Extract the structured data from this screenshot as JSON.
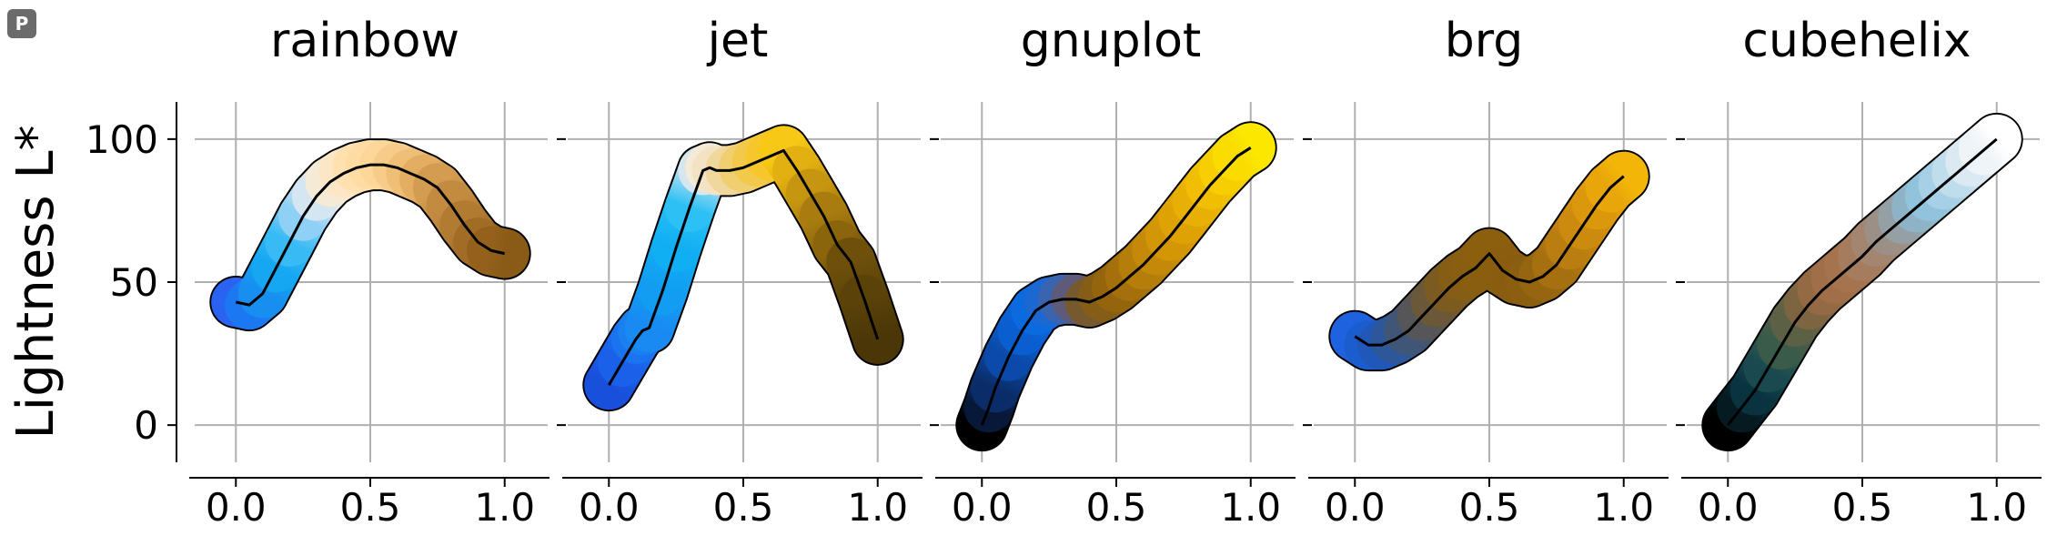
{
  "badge": {
    "label": "P"
  },
  "colors": {
    "grid": "#b0b0b0",
    "axis": "#000000",
    "centerline": "#000000"
  },
  "chart_data": [
    {
      "type": "line",
      "title": "rainbow",
      "ylabel": "Lightness L*",
      "xlim": [
        -0.16,
        1.16
      ],
      "ylim": [
        -13,
        113
      ],
      "xticks": [
        "0.0",
        "0.5",
        "1.0"
      ],
      "yticks": [
        "0",
        "50",
        "100"
      ],
      "grid": true,
      "x": [
        0.0,
        0.05,
        0.1,
        0.15,
        0.2,
        0.25,
        0.3,
        0.35,
        0.4,
        0.45,
        0.5,
        0.55,
        0.6,
        0.65,
        0.7,
        0.75,
        0.8,
        0.85,
        0.9,
        0.95,
        1.0
      ],
      "y": [
        43,
        42,
        46,
        55,
        64,
        73,
        80,
        85,
        88,
        90,
        91,
        91,
        90,
        88,
        86,
        83,
        77,
        70,
        64,
        61,
        60
      ],
      "colors": [
        "#2a62f2",
        "#1c78f0",
        "#168ff0",
        "#15a7f2",
        "#38baf5",
        "#8fd0f6",
        "#d4e6f2",
        "#f5ead6",
        "#fde6c6",
        "#ffe1b0",
        "#ffdca3",
        "#fdd69a",
        "#f7cc8a",
        "#efbe77",
        "#e3ae62",
        "#d39c50",
        "#c28b40",
        "#b17b32",
        "#a16c26",
        "#93611c",
        "#8a5a17"
      ]
    },
    {
      "type": "line",
      "title": "jet",
      "ylabel": "",
      "xlim": [
        -0.16,
        1.16
      ],
      "ylim": [
        -13,
        113
      ],
      "xticks": [
        "0.0",
        "0.5",
        "1.0"
      ],
      "yticks": [
        "0",
        "50",
        "100"
      ],
      "grid": true,
      "x": [
        0.0,
        0.05,
        0.1,
        0.125,
        0.15,
        0.2,
        0.25,
        0.3,
        0.35,
        0.375,
        0.4,
        0.45,
        0.5,
        0.55,
        0.6,
        0.65,
        0.7,
        0.75,
        0.8,
        0.85,
        0.9,
        0.95,
        1.0
      ],
      "y": [
        14,
        22,
        30,
        33,
        34,
        47,
        62,
        76,
        89,
        90,
        89,
        89,
        90,
        92,
        94,
        96,
        89,
        81,
        73,
        63,
        57,
        44,
        30
      ],
      "colors": [
        "#1850dc",
        "#1a60e8",
        "#1a73ef",
        "#1a80f0",
        "#188af1",
        "#129cf2",
        "#10aff3",
        "#2cc0f5",
        "#d6e6ee",
        "#f4ead8",
        "#f4e3c2",
        "#f0d79e",
        "#f0cf70",
        "#f2c94a",
        "#f5c72a",
        "#f7c815",
        "#e2b010",
        "#c79610",
        "#a87c0e",
        "#8a650c",
        "#6e500a",
        "#5a4208",
        "#4a3607"
      ]
    },
    {
      "type": "line",
      "title": "gnuplot",
      "ylabel": "",
      "xlim": [
        -0.16,
        1.16
      ],
      "ylim": [
        -13,
        113
      ],
      "xticks": [
        "0.0",
        "0.5",
        "1.0"
      ],
      "yticks": [
        "0",
        "50",
        "100"
      ],
      "grid": true,
      "x": [
        0.0,
        0.025,
        0.05,
        0.1,
        0.15,
        0.2,
        0.25,
        0.3,
        0.35,
        0.4,
        0.45,
        0.5,
        0.55,
        0.6,
        0.65,
        0.7,
        0.75,
        0.8,
        0.85,
        0.9,
        0.95,
        1.0
      ],
      "y": [
        0,
        6,
        13,
        24,
        33,
        40,
        43,
        44,
        44,
        43,
        45,
        48,
        52,
        56,
        61,
        66,
        72,
        78,
        84,
        89,
        94,
        97
      ],
      "colors": [
        "#000000",
        "#081838",
        "#0a2d6a",
        "#0b4aa8",
        "#0b5ed0",
        "#0c6adf",
        "#1c68d2",
        "#3a63b0",
        "#5e5a7a",
        "#77592f",
        "#865d16",
        "#94650d",
        "#a5700b",
        "#b57d0a",
        "#c48908",
        "#d39607",
        "#dfa205",
        "#e8b004",
        "#f0be03",
        "#f6ce02",
        "#fadc01",
        "#fbe700"
      ]
    },
    {
      "type": "line",
      "title": "brg",
      "ylabel": "",
      "xlim": [
        -0.16,
        1.16
      ],
      "ylim": [
        -13,
        113
      ],
      "xticks": [
        "0.0",
        "0.5",
        "1.0"
      ],
      "yticks": [
        "0",
        "50",
        "100"
      ],
      "grid": true,
      "x": [
        0.0,
        0.05,
        0.1,
        0.15,
        0.2,
        0.25,
        0.3,
        0.35,
        0.4,
        0.45,
        0.5,
        0.55,
        0.6,
        0.65,
        0.7,
        0.75,
        0.8,
        0.85,
        0.9,
        0.95,
        1.0
      ],
      "y": [
        31,
        28,
        28,
        30,
        33,
        38,
        43,
        48,
        52,
        55,
        60,
        54,
        51,
        50,
        52,
        56,
        63,
        70,
        77,
        83,
        87
      ],
      "colors": [
        "#1f62e0",
        "#1b5ccf",
        "#1f58b8",
        "#2d5798",
        "#3f5676",
        "#565658",
        "#6b5838",
        "#7b5b20",
        "#855d14",
        "#8a5e10",
        "#8c5f0e",
        "#8a5d0f",
        "#895c10",
        "#8b5e10",
        "#956510",
        "#a66f10",
        "#ba7d10",
        "#cc8b0e",
        "#dc980c",
        "#e9a60a",
        "#f3b608"
      ]
    },
    {
      "type": "line",
      "title": "cubehelix",
      "ylabel": "",
      "xlim": [
        -0.16,
        1.16
      ],
      "ylim": [
        -13,
        113
      ],
      "xticks": [
        "0.0",
        "0.5",
        "1.0"
      ],
      "yticks": [
        "0",
        "50",
        "100"
      ],
      "grid": true,
      "x": [
        0.0,
        0.05,
        0.1,
        0.15,
        0.2,
        0.25,
        0.3,
        0.35,
        0.4,
        0.45,
        0.5,
        0.55,
        0.6,
        0.65,
        0.7,
        0.75,
        0.8,
        0.85,
        0.9,
        0.95,
        1.0
      ],
      "y": [
        0,
        6,
        12,
        20,
        28,
        36,
        42,
        47,
        51,
        55,
        59,
        64,
        68,
        72,
        76,
        80,
        84,
        88,
        92,
        96,
        100
      ],
      "colors": [
        "#000000",
        "#061a22",
        "#0a3340",
        "#1a4a50",
        "#3a5a4a",
        "#5c6044",
        "#7d6541",
        "#946a44",
        "#a06e48",
        "#a5744f",
        "#a67c5e",
        "#a38570",
        "#9c8f86",
        "#95a0a6",
        "#8fb3c6",
        "#92c3dc",
        "#a6d0e6",
        "#c0ddec",
        "#dbe9f2",
        "#eef4f8",
        "#ffffff"
      ]
    }
  ]
}
